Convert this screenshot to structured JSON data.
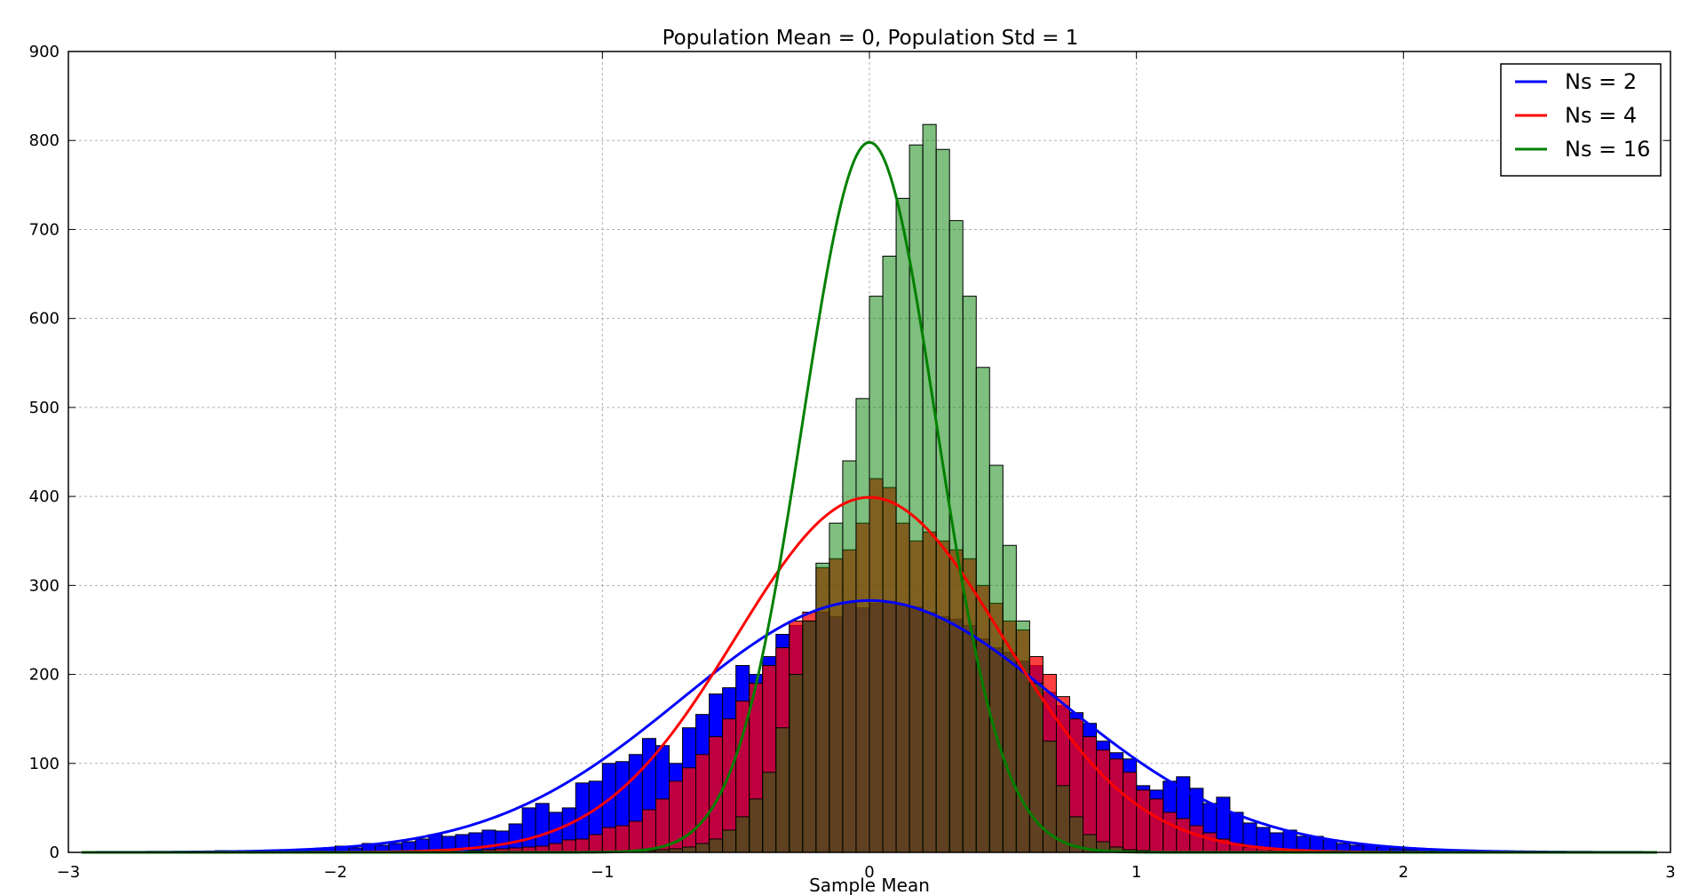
{
  "chart_data": {
    "type": "bar",
    "title": "Population Mean = 0, Population Std = 1",
    "xlabel": "Sample Mean",
    "ylabel": "",
    "xlim": [
      -3,
      3
    ],
    "ylim": [
      0,
      900
    ],
    "xticks": [
      -3,
      -2,
      -1,
      0,
      1,
      2,
      3
    ],
    "xtick_labels": [
      "−3",
      "−2",
      "−1",
      "0",
      "1",
      "2",
      "3"
    ],
    "yticks": [
      0,
      100,
      200,
      300,
      400,
      500,
      600,
      700,
      800,
      900
    ],
    "ytick_labels": [
      "0",
      "100",
      "200",
      "300",
      "400",
      "500",
      "600",
      "700",
      "800",
      "900"
    ],
    "grid": true,
    "legend_position": "top-right",
    "bin_width": 0.05,
    "series": [
      {
        "name": "Ns = 2",
        "color": "#0000ff",
        "hist_color": "#0000ff",
        "hist_opacity": 1.0,
        "curve_mean": 0,
        "curve_std": 0.707,
        "curve_peak": 283,
        "hist_x_start": -2.45,
        "hist_values": [
          2,
          1,
          1,
          2,
          1,
          2,
          3,
          4,
          5,
          7,
          5,
          10,
          8,
          10,
          12,
          15,
          20,
          18,
          20,
          22,
          25,
          24,
          32,
          50,
          55,
          45,
          50,
          78,
          80,
          100,
          102,
          110,
          128,
          120,
          100,
          140,
          155,
          178,
          185,
          210,
          200,
          220,
          245,
          255,
          260,
          270,
          265,
          280,
          275,
          280,
          282,
          278,
          276,
          270,
          265,
          262,
          255,
          240,
          230,
          225,
          215,
          210,
          180,
          165,
          157,
          145,
          125,
          112,
          105,
          75,
          70,
          80,
          85,
          72,
          55,
          62,
          45,
          33,
          28,
          22,
          25,
          18,
          18,
          14,
          10,
          8,
          8,
          6,
          4,
          3,
          3,
          2,
          2,
          1,
          1
        ],
        "hist_zero": 0
      },
      {
        "name": "Ns = 4",
        "color": "#ff0000",
        "hist_color": "#ff0000",
        "hist_opacity": 0.75,
        "curve_mean": 0,
        "curve_std": 0.5,
        "curve_peak": 399,
        "hist_x_start": -1.5,
        "hist_values": [
          2,
          3,
          4,
          5,
          6,
          7,
          10,
          14,
          15,
          20,
          28,
          30,
          35,
          48,
          60,
          80,
          95,
          110,
          130,
          150,
          170,
          190,
          210,
          230,
          260,
          270,
          320,
          330,
          340,
          370,
          420,
          410,
          370,
          350,
          360,
          350,
          340,
          330,
          300,
          280,
          260,
          250,
          220,
          200,
          175,
          150,
          130,
          115,
          105,
          90,
          70,
          60,
          45,
          38,
          30,
          22,
          15,
          10,
          6,
          5,
          3,
          2
        ]
      },
      {
        "name": "Ns = 16",
        "color": "#008000",
        "hist_color": "#008000",
        "hist_opacity": 0.5,
        "curve_mean": 0,
        "curve_std": 0.25,
        "curve_peak": 798,
        "hist_x_start": -0.85,
        "hist_values": [
          2,
          3,
          4,
          6,
          10,
          15,
          25,
          40,
          60,
          90,
          140,
          200,
          260,
          325,
          370,
          440,
          510,
          625,
          670,
          735,
          795,
          818,
          790,
          710,
          625,
          545,
          435,
          345,
          260,
          190,
          125,
          75,
          40,
          20,
          12,
          6,
          3,
          2
        ]
      }
    ]
  }
}
